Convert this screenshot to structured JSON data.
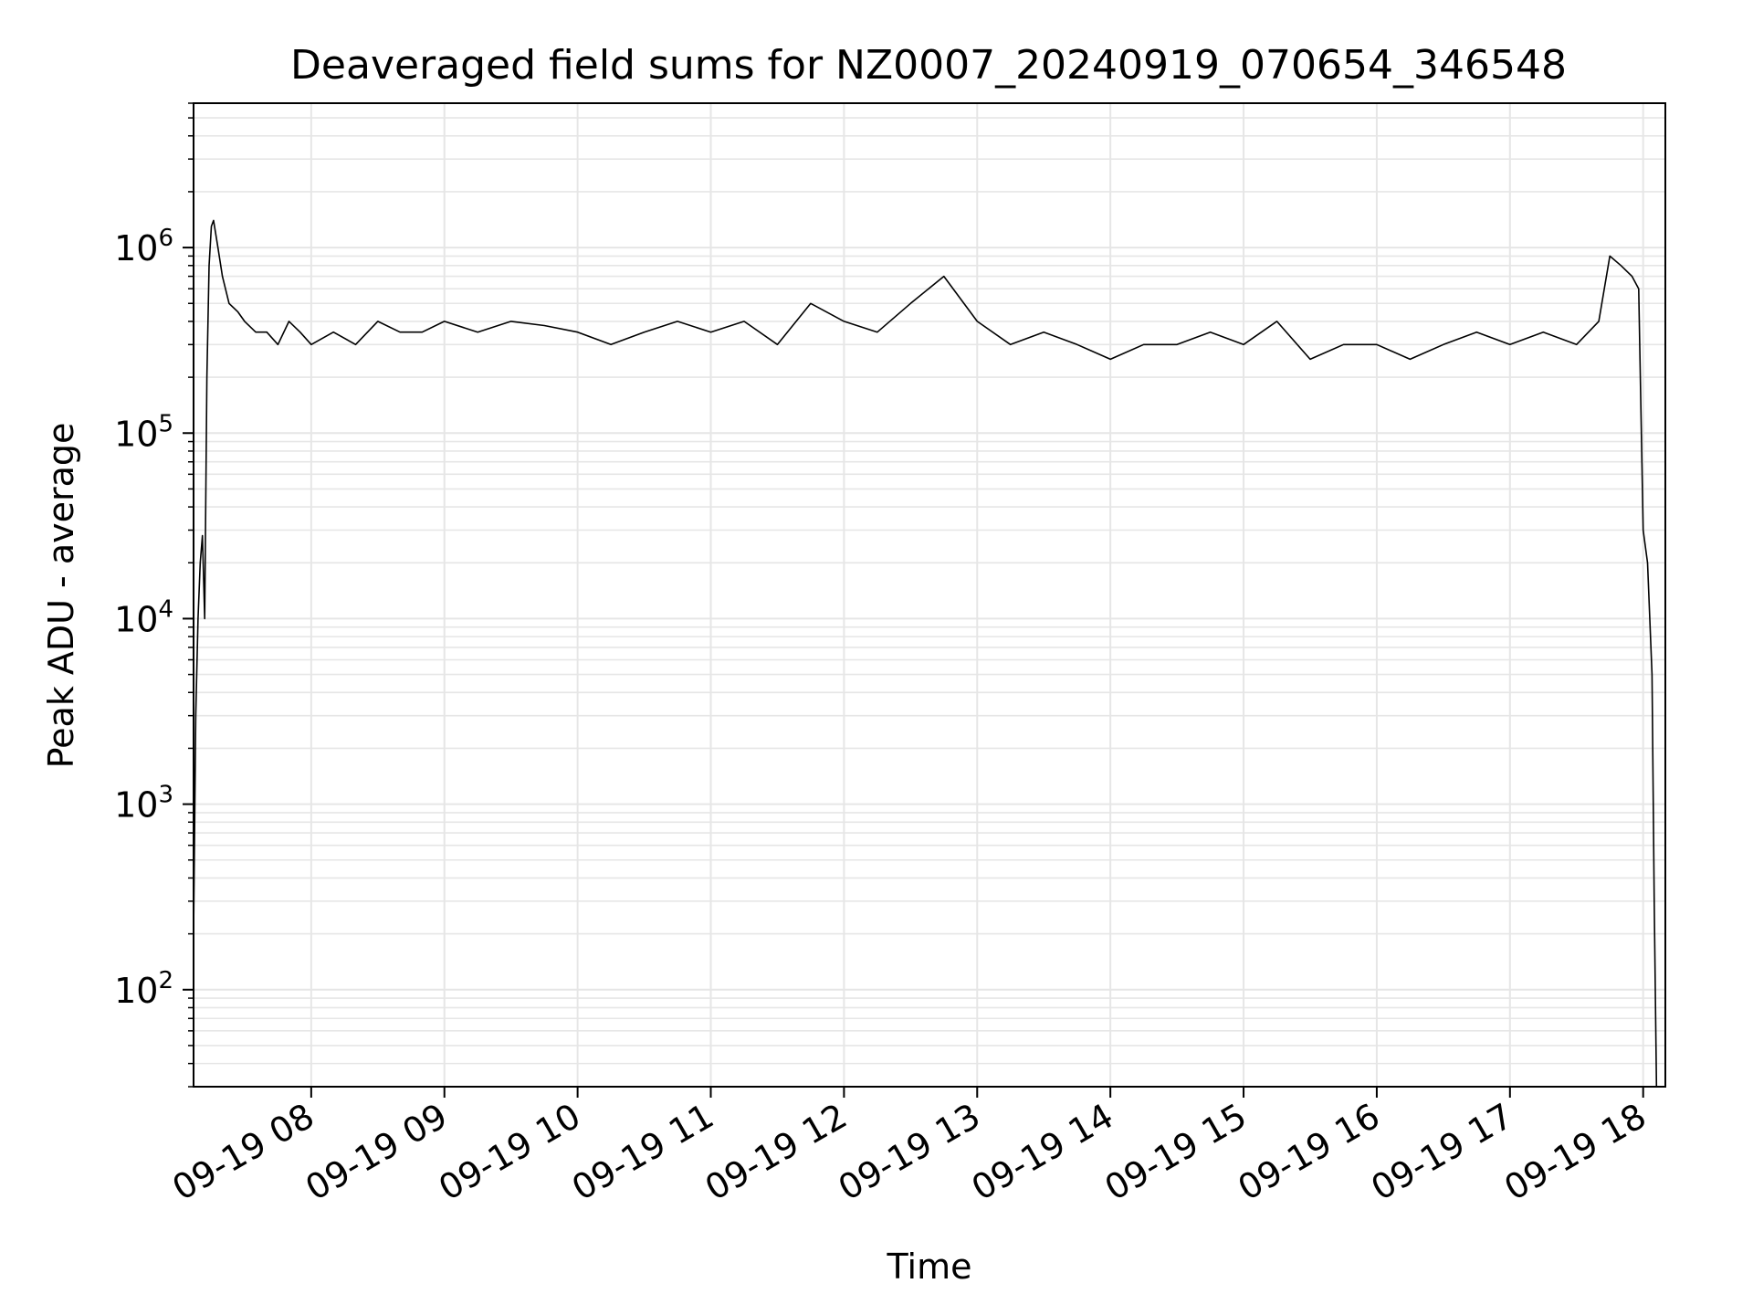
{
  "chart_data": {
    "type": "line",
    "title": "Deaveraged field sums for NZ0007_20240919_070654_346548",
    "xlabel": "Time",
    "ylabel": "Peak ADU - average",
    "yscale": "log",
    "ylim": [
      30,
      6000000
    ],
    "xlim": [
      "09-19 07:07",
      "09-19 18:10"
    ],
    "grid": true,
    "grid_minor": true,
    "legend": "none",
    "line_color": "#000000",
    "x_ticks": [
      {
        "value": "09-19 08:00",
        "label": "09-19 08"
      },
      {
        "value": "09-19 09:00",
        "label": "09-19 09"
      },
      {
        "value": "09-19 10:00",
        "label": "09-19 10"
      },
      {
        "value": "09-19 11:00",
        "label": "09-19 11"
      },
      {
        "value": "09-19 12:00",
        "label": "09-19 12"
      },
      {
        "value": "09-19 13:00",
        "label": "09-19 13"
      },
      {
        "value": "09-19 14:00",
        "label": "09-19 14"
      },
      {
        "value": "09-19 15:00",
        "label": "09-19 15"
      },
      {
        "value": "09-19 16:00",
        "label": "09-19 16"
      },
      {
        "value": "09-19 17:00",
        "label": "09-19 17"
      },
      {
        "value": "09-19 18:00",
        "label": "09-19 18"
      }
    ],
    "y_ticks": [
      {
        "value": 100,
        "base": "10",
        "exp": "2"
      },
      {
        "value": 1000,
        "base": "10",
        "exp": "3"
      },
      {
        "value": 10000,
        "base": "10",
        "exp": "4"
      },
      {
        "value": 100000,
        "base": "10",
        "exp": "5"
      },
      {
        "value": 1000000,
        "base": "10",
        "exp": "6"
      }
    ],
    "series": [
      {
        "x": [
          "09-19 07:07",
          "09-19 07:08",
          "09-19 07:09",
          "09-19 07:10",
          "09-19 07:11",
          "09-19 07:12",
          "09-19 07:13",
          "09-19 07:14",
          "09-19 07:15",
          "09-19 07:16",
          "09-19 07:18",
          "09-19 07:20",
          "09-19 07:23",
          "09-19 07:27",
          "09-19 07:30",
          "09-19 07:35",
          "09-19 07:40",
          "09-19 07:45",
          "09-19 07:50",
          "09-19 07:55",
          "09-19 08:00",
          "09-19 08:10",
          "09-19 08:20",
          "09-19 08:30",
          "09-19 08:40",
          "09-19 08:50",
          "09-19 09:00",
          "09-19 09:15",
          "09-19 09:30",
          "09-19 09:45",
          "09-19 10:00",
          "09-19 10:15",
          "09-19 10:30",
          "09-19 10:45",
          "09-19 11:00",
          "09-19 11:15",
          "09-19 11:30",
          "09-19 11:45",
          "09-19 12:00",
          "09-19 12:15",
          "09-19 12:30",
          "09-19 12:45",
          "09-19 13:00",
          "09-19 13:15",
          "09-19 13:30",
          "09-19 13:45",
          "09-19 14:00",
          "09-19 14:15",
          "09-19 14:30",
          "09-19 14:45",
          "09-19 15:00",
          "09-19 15:15",
          "09-19 15:30",
          "09-19 15:45",
          "09-19 16:00",
          "09-19 16:15",
          "09-19 16:30",
          "09-19 16:45",
          "09-19 17:00",
          "09-19 17:15",
          "09-19 17:30",
          "09-19 17:40",
          "09-19 17:45",
          "09-19 17:50",
          "09-19 17:55",
          "09-19 17:58",
          "09-19 18:00",
          "09-19 18:02",
          "09-19 18:04",
          "09-19 18:05",
          "09-19 18:06"
        ],
        "y": [
          200,
          3000,
          10000,
          20000,
          28000,
          10000,
          200000,
          800000,
          1300000,
          1400000,
          1000000,
          700000,
          500000,
          450000,
          400000,
          350000,
          350000,
          300000,
          400000,
          350000,
          300000,
          350000,
          300000,
          400000,
          350000,
          350000,
          400000,
          350000,
          400000,
          380000,
          350000,
          300000,
          350000,
          400000,
          350000,
          400000,
          300000,
          500000,
          400000,
          350000,
          500000,
          700000,
          400000,
          300000,
          350000,
          300000,
          250000,
          300000,
          300000,
          350000,
          300000,
          400000,
          250000,
          300000,
          300000,
          250000,
          300000,
          350000,
          300000,
          350000,
          300000,
          400000,
          900000,
          800000,
          700000,
          600000,
          30000,
          20000,
          5000,
          300,
          30
        ]
      }
    ]
  }
}
